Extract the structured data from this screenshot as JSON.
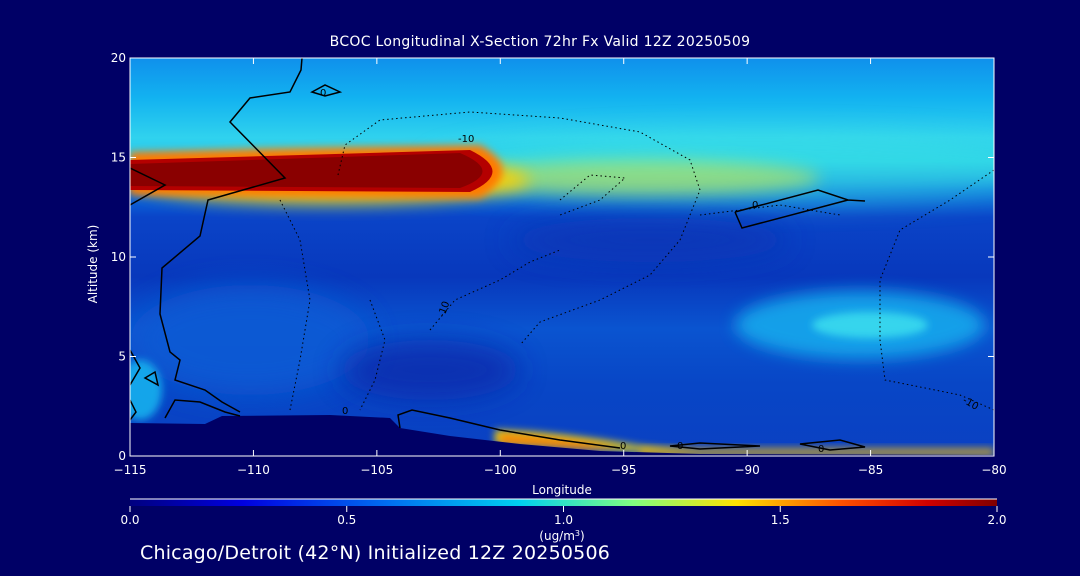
{
  "title": "BCOC Longitudinal X-Section 72hr  Fx Valid 12Z 20250509",
  "footer": "Chicago/Detroit (42°N) Initialized 12Z 20250506",
  "colors": {
    "background": "#000066",
    "text": "#ffffff",
    "contour": "#000000"
  },
  "chart_data": {
    "type": "heatmap",
    "title": "BCOC Longitudinal X-Section 72hr  Fx Valid 12Z 20250509",
    "xlabel": "Longitude",
    "ylabel": "Altitude (km)",
    "xlim": [
      -115,
      -80
    ],
    "ylim": [
      0,
      20
    ],
    "x_ticks": [
      -115,
      -110,
      -105,
      -100,
      -95,
      -90,
      -85,
      -80
    ],
    "x_tick_labels": [
      "−115",
      "−110",
      "−105",
      "−100",
      "−95",
      "−90",
      "−85",
      "−80"
    ],
    "y_ticks": [
      0,
      5,
      10,
      15,
      20
    ],
    "y_tick_labels": [
      "0",
      "5",
      "10",
      "15",
      "20"
    ],
    "colorbar": {
      "label": "(ug/m³)",
      "range": [
        0.0,
        2.0
      ],
      "ticks": [
        0.0,
        0.5,
        1.0,
        1.5,
        2.0
      ],
      "tick_labels": [
        "0.0",
        "0.5",
        "1.0",
        "1.5",
        "2.0"
      ]
    },
    "concentration_features": [
      {
        "desc": "upper plume core",
        "lon_range": [
          -115,
          -99
        ],
        "alt_km": 14.0,
        "value": 2.0
      },
      {
        "desc": "upper enhanced band",
        "lon_range": [
          -115,
          -80
        ],
        "alt_km": 14.5,
        "value": 0.6
      },
      {
        "desc": "mid-level lobe",
        "lon_range": [
          -90,
          -81
        ],
        "alt_km": 6.5,
        "value": 0.65
      },
      {
        "desc": "low-level plume",
        "lon_range": [
          -100,
          -93
        ],
        "alt_km": 0.9,
        "value": 1.7
      },
      {
        "desc": "near-surface band",
        "lon_range": [
          -93,
          -80
        ],
        "alt_km": 0.3,
        "value": 1.4
      }
    ],
    "contour_labels": [
      "0",
      "-10",
      "-10",
      "0",
      "0",
      "0",
      "0",
      "0",
      "-10"
    ]
  }
}
